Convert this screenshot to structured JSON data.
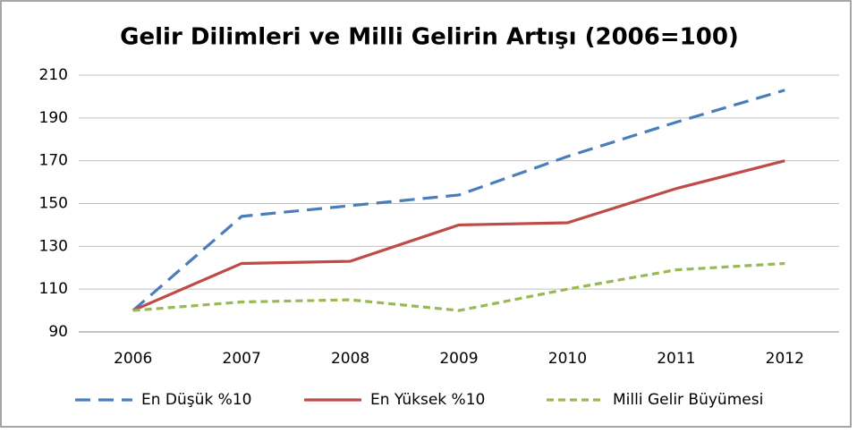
{
  "chart_data": {
    "type": "line",
    "title": "Gelir Dilimleri ve Milli Gelirin Artışı (2006=100)",
    "categories": [
      "2006",
      "2007",
      "2008",
      "2009",
      "2010",
      "2011",
      "2012"
    ],
    "series": [
      {
        "name": "En Düşük %10",
        "color": "#4a7ebb",
        "line_style": "dashed",
        "values": [
          100,
          144,
          149,
          154,
          172,
          188,
          203
        ]
      },
      {
        "name": "En Yüksek %10",
        "color": "#be4b48",
        "line_style": "solid",
        "values": [
          100,
          122,
          123,
          140,
          141,
          157,
          170
        ]
      },
      {
        "name": "Milli Gelir Büyümesi",
        "color": "#98b954",
        "line_style": "short-dashed",
        "values": [
          100,
          104,
          105,
          100,
          110,
          119,
          122
        ]
      }
    ],
    "ylim": [
      90,
      210
    ],
    "yticks": [
      90,
      110,
      130,
      150,
      170,
      190,
      210
    ],
    "grid": true,
    "legend": "bottom"
  }
}
